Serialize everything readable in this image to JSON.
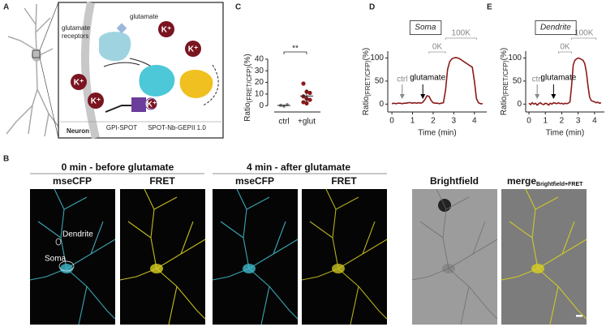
{
  "panel_labels": [
    "A",
    "B",
    "C",
    "D",
    "E"
  ],
  "panel_a": {
    "glutamate": "glutamate",
    "receptors_label": [
      "glutamate",
      "receptors"
    ],
    "ions": [
      "K⁺",
      "K⁺",
      "K⁺",
      "K⁺",
      "K⁺"
    ],
    "neuron": "Neuron",
    "gpi_spot": "GPI-SPOT",
    "sensor": "SPOT-Nb-GEPII 1.0"
  },
  "panel_b": {
    "conditions": [
      "0 min - before glutamate",
      "4 min - after glutamate"
    ],
    "channels": [
      "mseCFP",
      "FRET",
      "mseCFP",
      "FRET",
      "Brightfield"
    ],
    "merge": "merge",
    "merge_sub": "Brightfield+FRET",
    "regions": [
      "Dendrite",
      "Soma"
    ]
  },
  "chart_data": [
    {
      "type": "strip",
      "ylabel": [
        "Ratio",
        "(FRET/CFP)",
        "(%)"
      ],
      "categories": [
        "ctrl",
        "+glut"
      ],
      "points": [
        [
          0.5,
          -0.3,
          0.8,
          0.2,
          -0.5,
          1.0,
          0.3,
          -0.2
        ],
        [
          19,
          12,
          11,
          8,
          6,
          5,
          3,
          2
        ]
      ],
      "colors": [
        "#808080",
        "#8b1a1a"
      ],
      "means": [
        0.2,
        8.3
      ],
      "errors": [
        0.5,
        5.8
      ],
      "ylim": [
        -4,
        42
      ],
      "yticks": [
        0,
        10,
        20,
        30,
        40
      ],
      "significance": "**"
    },
    {
      "type": "line",
      "panel": "Soma",
      "ylabel": [
        "Ratio",
        "(FRET/CFP)",
        "(%)"
      ],
      "xlabel": "Time (min)",
      "x": [
        0,
        0.1,
        0.2,
        0.3,
        0.4,
        0.5,
        0.6,
        0.7,
        0.8,
        0.9,
        1.0,
        1.1,
        1.2,
        1.3,
        1.4,
        1.5,
        1.6,
        1.7,
        1.8,
        1.9,
        2.0,
        2.1,
        2.2,
        2.3,
        2.4,
        2.5,
        2.6,
        2.7,
        2.8,
        2.9,
        3.0,
        3.1,
        3.2,
        3.3,
        3.4,
        3.5,
        3.6,
        3.7,
        3.8,
        3.9,
        4.0,
        4.1,
        4.2,
        4.3,
        4.4
      ],
      "series": [
        {
          "color": "#8b1a1a",
          "values": [
            1,
            2,
            1,
            2,
            2,
            1,
            2,
            2,
            3,
            3,
            2,
            3,
            2,
            3,
            2,
            4,
            10,
            18,
            17,
            8,
            3,
            2,
            2,
            1,
            2,
            3,
            30,
            75,
            92,
            98,
            100,
            101,
            100,
            98,
            95,
            92,
            89,
            86,
            83,
            80,
            50,
            12,
            3,
            1,
            1
          ]
        }
      ],
      "xlim": [
        -0.2,
        4.6
      ],
      "ylim": [
        -10,
        115
      ],
      "xticks": [
        0,
        1,
        2,
        3,
        4
      ],
      "yticks": [
        0,
        50,
        100
      ],
      "stimuli": [
        {
          "label": "0K",
          "start": 1.8,
          "end": 2.6
        },
        {
          "label": "100K",
          "start": 2.6,
          "end": 4.1
        }
      ],
      "annotations": [
        {
          "text": "ctrl",
          "x": 0.5,
          "color": "#888888"
        },
        {
          "text": "glutamate",
          "x": 1.5,
          "color": "#000000"
        }
      ]
    },
    {
      "type": "line",
      "panel": "Dendrite",
      "ylabel": [
        "Ratio",
        "(FRET/CFP)",
        "(%)"
      ],
      "xlabel": "Time (min)",
      "x": [
        0,
        0.1,
        0.2,
        0.3,
        0.4,
        0.5,
        0.6,
        0.7,
        0.8,
        0.9,
        1.0,
        1.1,
        1.2,
        1.3,
        1.4,
        1.5,
        1.6,
        1.7,
        1.8,
        1.9,
        2.0,
        2.1,
        2.2,
        2.3,
        2.4,
        2.5,
        2.6,
        2.7,
        2.8,
        2.9,
        3.0,
        3.1,
        3.2,
        3.3,
        3.4,
        3.5,
        3.6,
        3.7,
        3.8,
        3.9,
        4.0,
        4.1,
        4.2,
        4.3,
        4.4
      ],
      "series": [
        {
          "color": "#8b1a1a",
          "values": [
            2,
            -1,
            3,
            0,
            2,
            -2,
            1,
            3,
            0,
            -1,
            2,
            1,
            -2,
            2,
            0,
            3,
            2,
            1,
            3,
            1,
            2,
            0,
            2,
            1,
            2,
            5,
            40,
            85,
            95,
            98,
            100,
            99,
            97,
            95,
            88,
            70,
            40,
            15,
            8,
            6,
            5,
            3,
            4,
            2,
            3
          ]
        }
      ],
      "xlim": [
        -0.2,
        4.6
      ],
      "ylim": [
        -10,
        115
      ],
      "xticks": [
        0,
        1,
        2,
        3,
        4
      ],
      "yticks": [
        0,
        50,
        100
      ],
      "stimuli": [
        {
          "label": "0K",
          "start": 1.8,
          "end": 2.6
        },
        {
          "label": "100K",
          "start": 2.6,
          "end": 4.1
        }
      ],
      "annotations": [
        {
          "text": "ctrl",
          "x": 0.5,
          "color": "#888888"
        },
        {
          "text": "glutamate",
          "x": 1.5,
          "color": "#000000"
        }
      ]
    }
  ]
}
